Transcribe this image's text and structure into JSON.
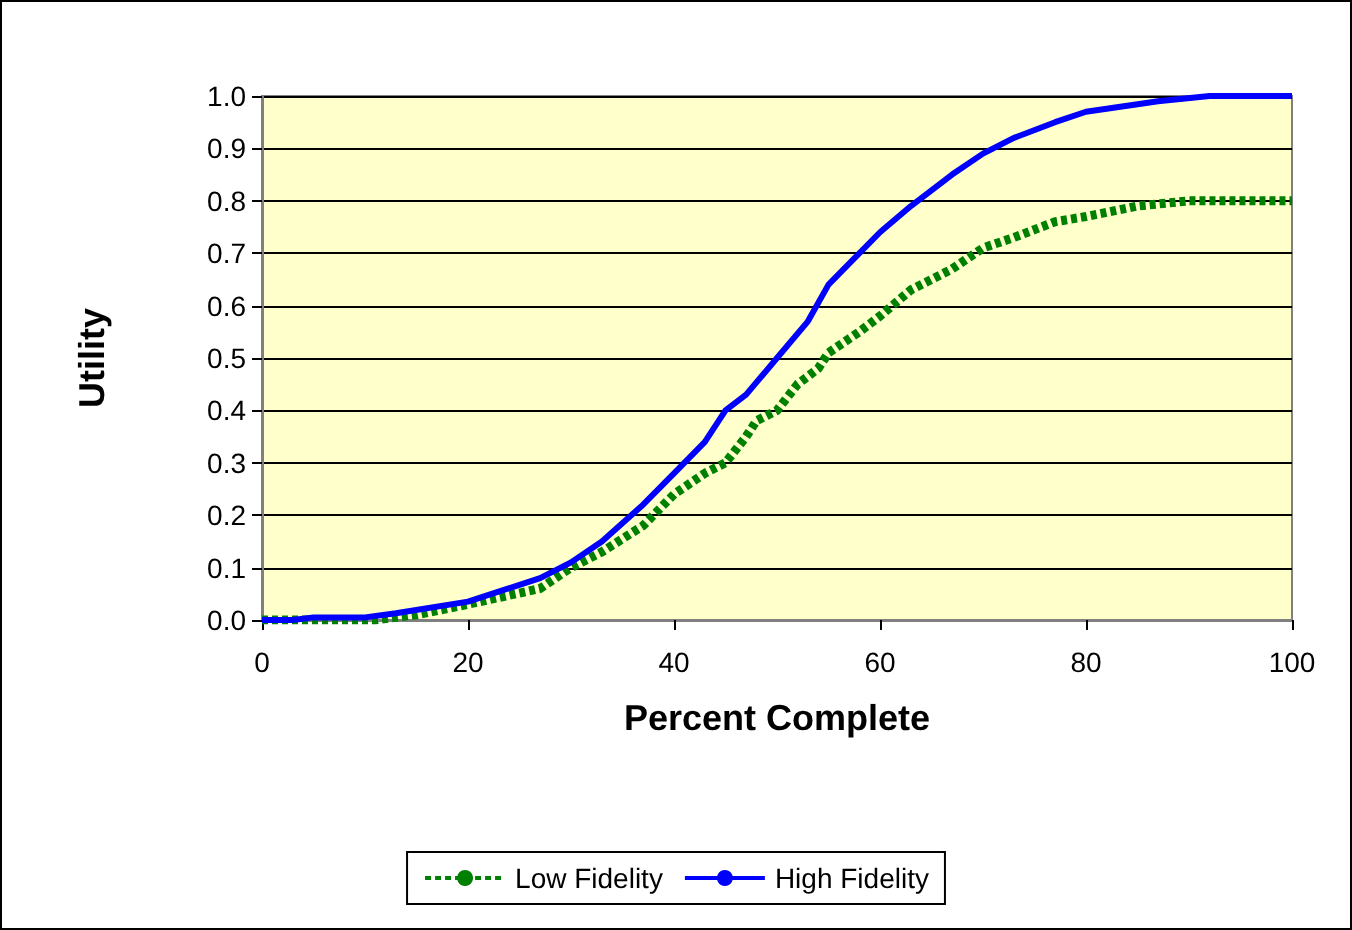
{
  "chart_data": {
    "type": "line",
    "xlabel": "Percent Complete",
    "ylabel": "Utility",
    "xlim": [
      0,
      100
    ],
    "xticks": [
      0,
      20,
      40,
      60,
      80,
      100
    ],
    "ylim": [
      0,
      1
    ],
    "yticks": [
      {
        "value": 0,
        "label": "0.0"
      },
      {
        "value": 0.1,
        "label": "0.1"
      },
      {
        "value": 0.2,
        "label": "0.2"
      },
      {
        "value": 0.3,
        "label": "0.3"
      },
      {
        "value": 0.4,
        "label": "0.4"
      },
      {
        "value": 0.5,
        "label": "0.5"
      },
      {
        "value": 0.6,
        "label": "0.6"
      },
      {
        "value": 0.7,
        "label": "0.7"
      },
      {
        "value": 0.8,
        "label": "0.8"
      },
      {
        "value": 0.9,
        "label": "0.9"
      },
      {
        "value": 1,
        "label": "1.0"
      }
    ],
    "grid": "y",
    "legend": "bottom",
    "marker": "none",
    "series": [
      {
        "name": "Low Fidelity",
        "color": "#008000",
        "line_style": "dashed",
        "x": [
          0,
          11,
          15,
          20,
          27,
          30,
          33,
          37,
          40,
          43,
          45,
          47,
          48,
          50,
          52,
          54,
          55,
          58,
          60,
          63,
          67,
          70,
          73,
          77,
          80,
          85,
          90,
          100
        ],
        "values": [
          0,
          0,
          0.01,
          0.03,
          0.06,
          0.1,
          0.13,
          0.18,
          0.24,
          0.28,
          0.3,
          0.35,
          0.38,
          0.4,
          0.45,
          0.48,
          0.51,
          0.55,
          0.58,
          0.63,
          0.67,
          0.71,
          0.73,
          0.76,
          0.77,
          0.79,
          0.8,
          0.8
        ]
      },
      {
        "name": "High Fidelity",
        "color": "#0000ff",
        "line_style": "solid",
        "x": [
          0,
          3,
          5,
          10,
          13,
          20,
          27,
          30,
          33,
          37,
          40,
          43,
          45,
          47,
          50,
          53,
          55,
          57,
          60,
          63,
          67,
          70,
          73,
          77,
          80,
          87,
          92,
          100
        ],
        "values": [
          0,
          0,
          0.005,
          0.005,
          0.013,
          0.035,
          0.08,
          0.11,
          0.15,
          0.22,
          0.28,
          0.34,
          0.4,
          0.43,
          0.5,
          0.57,
          0.64,
          0.68,
          0.74,
          0.79,
          0.85,
          0.89,
          0.92,
          0.95,
          0.97,
          0.99,
          1,
          1
        ]
      }
    ]
  }
}
